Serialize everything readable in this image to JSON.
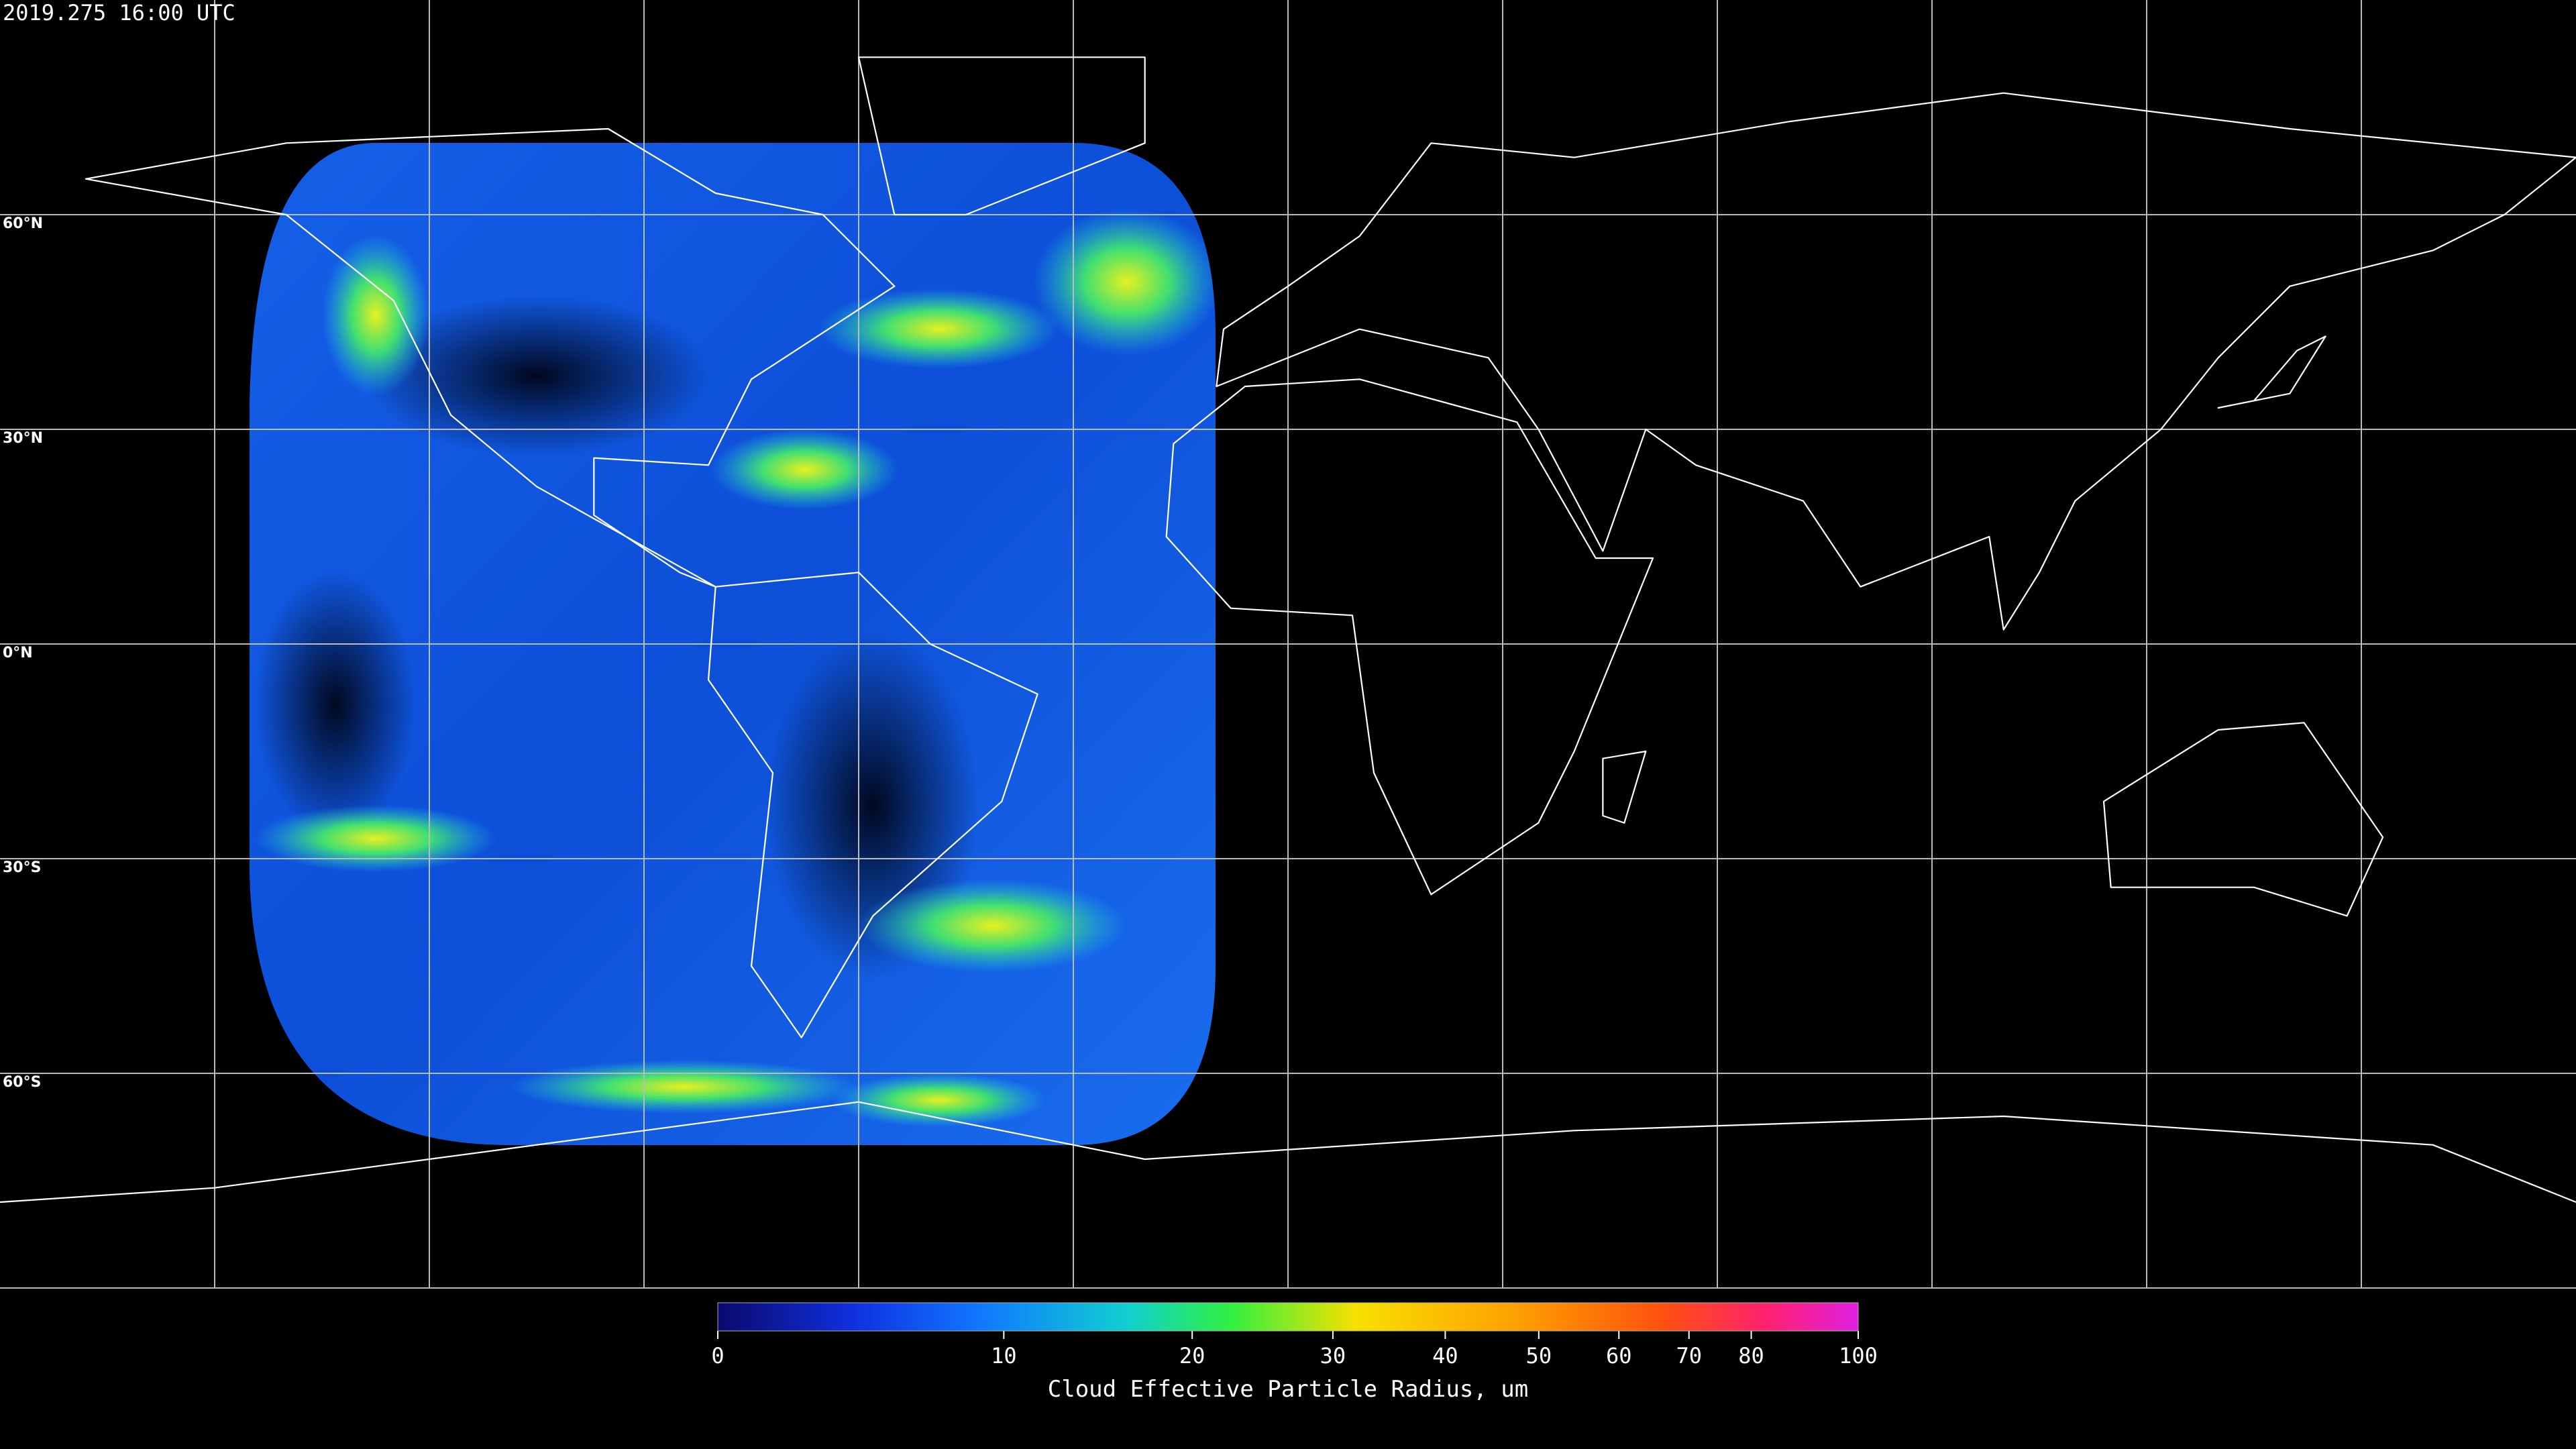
{
  "title": "2019.275 16:00 UTC",
  "map": {
    "latitude_labels": [
      "60°N",
      "30°N",
      "0°N",
      "30°S",
      "60°S"
    ]
  },
  "colorbar": {
    "label": "Cloud Effective Particle Radius, um",
    "lim": [
      0,
      100
    ],
    "ticks": [
      0,
      10,
      20,
      30,
      40,
      50,
      60,
      70,
      80,
      100
    ]
  }
}
